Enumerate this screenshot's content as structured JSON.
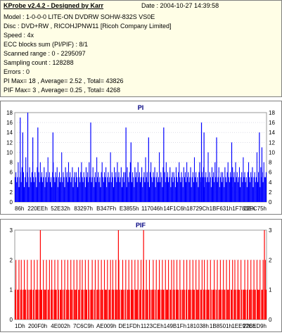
{
  "header": {
    "title": "KProbe v2.4.2 - Designed by Karr",
    "date_label": "Date : 2004-10-27 14:39:58"
  },
  "info_lines": [
    "Model : 1-0-0-0 LITE-ON DVDRW SOHW-832S  VS0E",
    "Disc : DVD+RW , RICOHJPNW11 [Ricoh Company Limited]",
    "Speed : 4x",
    "ECC blocks sum (PI/PIF) : 8/1",
    "Scanned range : 0 - 2295097",
    "Sampling count : 128288",
    "Errors : 0",
    "PI Max= 18 , Average= 2.52 , Total= 43826",
    "PIF Max= 3 , Average= 0.25 , Total= 4268"
  ],
  "chart_data": [
    {
      "type": "bar",
      "title": "PI",
      "ylim": [
        0,
        18
      ],
      "yticks": [
        0,
        2,
        4,
        6,
        8,
        10,
        12,
        14,
        16,
        18
      ],
      "xtick_labels": [
        "86h",
        "220EEh",
        "52E32h",
        "83297h",
        "B347Fh",
        "E3855h",
        "117046h",
        "14F1C6h",
        "18729Ch",
        "1BF631h",
        "1F783Eh",
        "22FC75h"
      ],
      "grid": true,
      "color": "#0000ff",
      "series": [
        {
          "values": [
            5,
            6,
            4,
            5,
            8,
            3,
            5,
            6,
            4,
            7,
            5,
            6,
            3,
            5,
            9,
            4,
            6,
            5,
            3,
            7,
            5,
            4,
            6,
            8,
            5,
            4,
            6,
            5,
            3,
            7,
            5,
            6,
            4,
            8,
            5,
            6,
            4,
            5,
            7,
            3,
            5,
            6,
            4,
            9,
            5,
            6,
            4,
            5,
            3,
            6,
            8,
            5,
            4,
            6,
            5,
            7,
            3,
            5,
            6,
            4,
            5,
            10,
            4,
            6,
            5,
            3,
            7,
            5,
            6,
            4,
            8,
            5,
            6,
            4,
            5,
            7,
            3,
            5,
            6,
            4,
            6,
            5,
            3,
            7,
            5,
            4,
            6,
            8,
            5,
            4,
            6,
            5,
            3,
            7,
            5,
            6,
            4,
            8,
            5,
            6,
            4,
            5,
            7,
            3,
            5,
            6,
            4,
            9,
            5,
            6,
            4,
            5,
            3,
            6,
            8,
            5,
            4,
            6,
            5,
            7,
            3,
            5,
            6,
            4,
            5,
            10,
            4,
            6,
            5,
            3,
            7,
            5,
            6,
            4,
            8,
            5,
            6,
            4,
            5,
            7,
            3,
            5,
            6,
            4,
            6,
            5,
            3,
            7,
            5,
            4,
            6,
            8,
            5,
            4,
            6,
            5,
            3,
            7,
            5,
            6,
            4,
            8,
            5,
            6,
            4,
            5,
            7,
            3,
            5,
            6,
            4,
            9,
            5,
            6,
            4,
            5,
            3,
            6,
            8,
            5,
            4,
            6,
            5,
            7,
            3,
            5,
            6,
            4,
            5,
            10,
            4,
            6,
            5,
            3,
            7,
            5,
            6,
            4,
            8,
            5,
            6,
            4,
            5,
            7,
            3,
            5,
            6,
            4,
            6,
            5,
            3,
            7,
            5,
            4,
            6,
            8,
            5,
            4,
            6,
            5,
            3,
            7,
            5,
            6,
            4,
            8,
            5,
            6,
            4,
            5,
            7,
            3,
            5,
            6,
            4,
            9,
            5,
            6,
            4,
            5,
            3,
            6,
            8,
            5,
            4,
            6,
            5,
            7,
            3,
            5,
            6,
            4,
            5,
            10,
            4,
            6,
            5,
            3,
            7,
            5,
            6,
            4,
            8,
            5,
            6,
            4,
            5,
            7,
            3,
            5,
            6,
            4,
            6,
            5,
            3,
            7,
            5,
            4,
            6,
            8,
            5,
            4,
            6,
            5,
            3,
            7,
            5,
            6,
            4,
            8,
            5,
            6,
            4,
            5,
            7,
            3,
            5,
            6,
            4,
            9,
            5,
            6,
            4,
            5,
            3,
            6,
            8,
            5,
            4,
            6,
            5,
            7,
            3,
            5,
            6,
            4,
            5,
            10,
            4,
            6,
            5,
            3,
            7,
            5,
            6,
            4,
            8,
            5
          ]
        }
      ],
      "spikes": [
        {
          "x_frac": 0.02,
          "value": 17
        },
        {
          "x_frac": 0.03,
          "value": 14
        },
        {
          "x_frac": 0.05,
          "value": 18
        },
        {
          "x_frac": 0.07,
          "value": 13
        },
        {
          "x_frac": 0.09,
          "value": 15
        },
        {
          "x_frac": 0.15,
          "value": 14
        },
        {
          "x_frac": 0.3,
          "value": 16
        },
        {
          "x_frac": 0.44,
          "value": 15
        },
        {
          "x_frac": 0.46,
          "value": 12
        },
        {
          "x_frac": 0.53,
          "value": 13
        },
        {
          "x_frac": 0.59,
          "value": 15
        },
        {
          "x_frac": 0.74,
          "value": 16
        },
        {
          "x_frac": 0.75,
          "value": 14
        },
        {
          "x_frac": 0.8,
          "value": 13
        },
        {
          "x_frac": 0.86,
          "value": 12
        },
        {
          "x_frac": 0.97,
          "value": 14
        },
        {
          "x_frac": 0.98,
          "value": 11
        }
      ]
    },
    {
      "type": "bar",
      "title": "PIF",
      "ylim": [
        0,
        3
      ],
      "yticks": [
        0,
        1,
        2,
        3
      ],
      "xtick_labels": [
        "1Dh",
        "200F0h",
        "4E002h",
        "7C6C9h",
        "AE009h",
        "DE1FDh",
        "1123CEh",
        "149B1Fh",
        "181038h",
        "1B8501h",
        "1EE97Ch",
        "226ED9h"
      ],
      "grid": true,
      "color": "#ff0000",
      "values_pattern": [
        1,
        2,
        0,
        1,
        1,
        2,
        0,
        1,
        2,
        1,
        0,
        1,
        2,
        1,
        1,
        0,
        2,
        1,
        0,
        1,
        1,
        2,
        1,
        0,
        1,
        2,
        0,
        1,
        1,
        2,
        1,
        0,
        1,
        2,
        1,
        1,
        0,
        2,
        1,
        1
      ],
      "spikes": [
        {
          "x_frac": 0.1,
          "value": 3
        },
        {
          "x_frac": 0.41,
          "value": 3
        },
        {
          "x_frac": 0.51,
          "value": 3
        },
        {
          "x_frac": 0.99,
          "value": 3
        }
      ]
    }
  ]
}
